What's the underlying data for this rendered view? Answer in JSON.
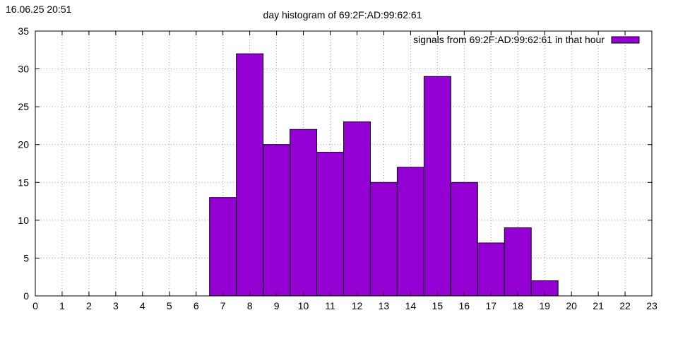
{
  "timestamp": "16.06.25 20:51",
  "chart_data": {
    "type": "bar",
    "title": "day histogram of 69:2F:AD:99:62:61",
    "xlabel": "",
    "ylabel": "",
    "x_ticks": [
      "0",
      "1",
      "2",
      "3",
      "4",
      "5",
      "6",
      "7",
      "8",
      "9",
      "10",
      "11",
      "12",
      "13",
      "14",
      "15",
      "16",
      "17",
      "18",
      "19",
      "20",
      "21",
      "22",
      "23"
    ],
    "y_ticks": [
      "0",
      "5",
      "10",
      "15",
      "20",
      "25",
      "30",
      "35"
    ],
    "xlim": [
      0,
      23
    ],
    "ylim": [
      0,
      35
    ],
    "grid": true,
    "legend_position": "top-right",
    "series": [
      {
        "name": "signals from 69:2F:AD:99:62:61 in that hour",
        "color": "#9400d3",
        "categories": [
          7,
          8,
          9,
          10,
          11,
          12,
          13,
          14,
          15,
          16,
          17,
          18,
          19
        ],
        "values": [
          13,
          32,
          20,
          22,
          19,
          23,
          15,
          17,
          29,
          15,
          7,
          9,
          2
        ]
      }
    ]
  }
}
